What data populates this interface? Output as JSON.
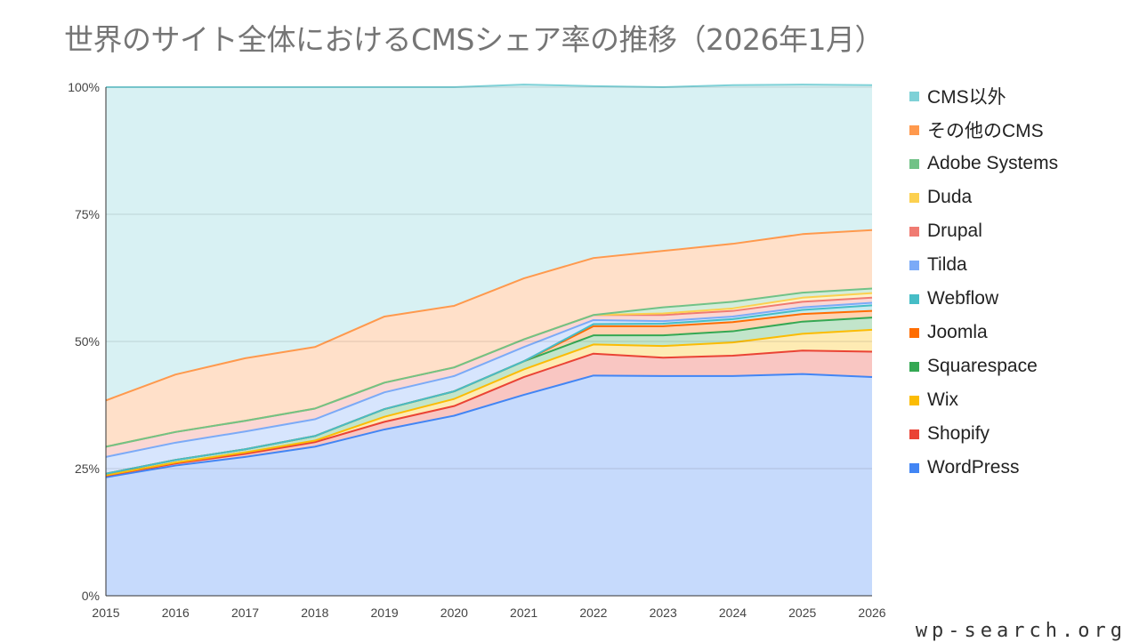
{
  "title": "世界のサイト全体におけるCMSシェア率の推移（2026年1月）",
  "source_label": "wp-search.org",
  "chart_data": {
    "type": "area",
    "stacked": true,
    "title": "世界のサイト全体におけるCMSシェア率の推移（2026年1月）",
    "x": [
      "2015",
      "2016",
      "2017",
      "2018",
      "2019",
      "2020",
      "2021",
      "2022",
      "2023",
      "2024",
      "2025",
      "2026"
    ],
    "ylim": [
      0,
      100
    ],
    "y_ticks": [
      "0%",
      "25%",
      "50%",
      "75%",
      "100%"
    ],
    "grid": true,
    "legend_position": "right",
    "series": [
      {
        "name": "WordPress",
        "color": "#4285f4",
        "values": [
          23.3,
          25.6,
          27.3,
          29.3,
          32.7,
          35.4,
          39.5,
          43.3,
          43.2,
          43.2,
          43.6,
          43.0
        ]
      },
      {
        "name": "Shopify",
        "color": "#ea4335",
        "values": [
          0.3,
          0.4,
          0.6,
          0.9,
          1.5,
          1.9,
          3.5,
          4.3,
          3.6,
          4.0,
          4.6,
          5.0
        ]
      },
      {
        "name": "Wix",
        "color": "#fbbc04",
        "values": [
          0.1,
          0.2,
          0.3,
          0.3,
          1.0,
          1.4,
          1.5,
          1.8,
          2.3,
          2.6,
          3.3,
          4.3
        ]
      },
      {
        "name": "Squarespace",
        "color": "#34a853",
        "values": [
          0.3,
          0.5,
          0.6,
          0.9,
          1.5,
          1.5,
          1.6,
          1.8,
          2.1,
          2.2,
          2.4,
          2.4
        ]
      },
      {
        "name": "Joomla",
        "color": "#ff6d01",
        "values": [
          0,
          0,
          0,
          0,
          0,
          0,
          0,
          1.8,
          1.8,
          1.8,
          1.5,
          1.3
        ]
      },
      {
        "name": "Webflow",
        "color": "#46bdc6",
        "values": [
          0,
          0,
          0,
          0,
          0,
          0,
          0,
          0.4,
          0.5,
          0.6,
          0.8,
          1.1
        ]
      },
      {
        "name": "Tilda",
        "color": "#7baaf7",
        "values": [
          3.3,
          3.4,
          3.5,
          3.3,
          3.3,
          3.0,
          2.8,
          0.8,
          0.5,
          0.5,
          0.5,
          0.5
        ]
      },
      {
        "name": "Drupal",
        "color": "#f07b72",
        "values": [
          2.0,
          2.1,
          2.1,
          2.1,
          1.9,
          1.7,
          1.5,
          1.0,
          1.2,
          1.1,
          1.1,
          1.0
        ]
      },
      {
        "name": "Duda",
        "color": "#fcd04f",
        "values": [
          0,
          0,
          0,
          0,
          0,
          0,
          0,
          0,
          0.3,
          0.5,
          0.8,
          0.9
        ]
      },
      {
        "name": "Adobe Systems",
        "color": "#71c287",
        "values": [
          0,
          0,
          0,
          0,
          0,
          0,
          0,
          0,
          1.2,
          1.3,
          1.0,
          0.9
        ]
      },
      {
        "name": "その他のCMS",
        "color": "#ff994d",
        "values": [
          9.1,
          11.3,
          12.3,
          12.1,
          13.0,
          12.1,
          12.0,
          11.2,
          11.1,
          11.4,
          11.5,
          11.5
        ]
      },
      {
        "name": "CMS以外",
        "color": "#7ed1d7",
        "values": [
          61.6,
          56.5,
          53.3,
          51.1,
          45.1,
          43.0,
          38.1,
          33.8,
          32.2,
          31.2,
          29.4,
          28.5
        ]
      }
    ]
  }
}
